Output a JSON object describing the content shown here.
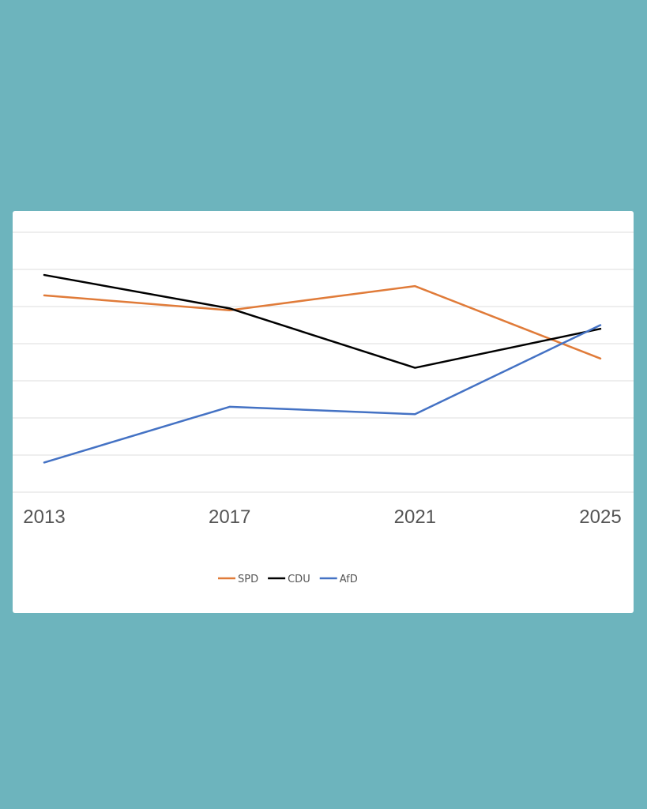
{
  "chart_data": {
    "type": "line",
    "categories": [
      "2013",
      "2017",
      "2021",
      "2025"
    ],
    "ylim": [
      0,
      7
    ],
    "y_ticks": [
      0,
      1,
      2,
      3,
      4,
      5,
      6,
      7
    ],
    "grid": true,
    "y_tick_labels_shown": false,
    "legend_position": "bottom",
    "series": [
      {
        "name": "SPD",
        "color": "#e07b39",
        "values": [
          5.3,
          4.9,
          5.55,
          3.6
        ]
      },
      {
        "name": "CDU",
        "color": "#000000",
        "values": [
          5.85,
          4.95,
          3.35,
          4.4
        ]
      },
      {
        "name": "AfD",
        "color": "#4472c4",
        "values": [
          0.8,
          2.3,
          2.1,
          4.5
        ]
      }
    ]
  }
}
